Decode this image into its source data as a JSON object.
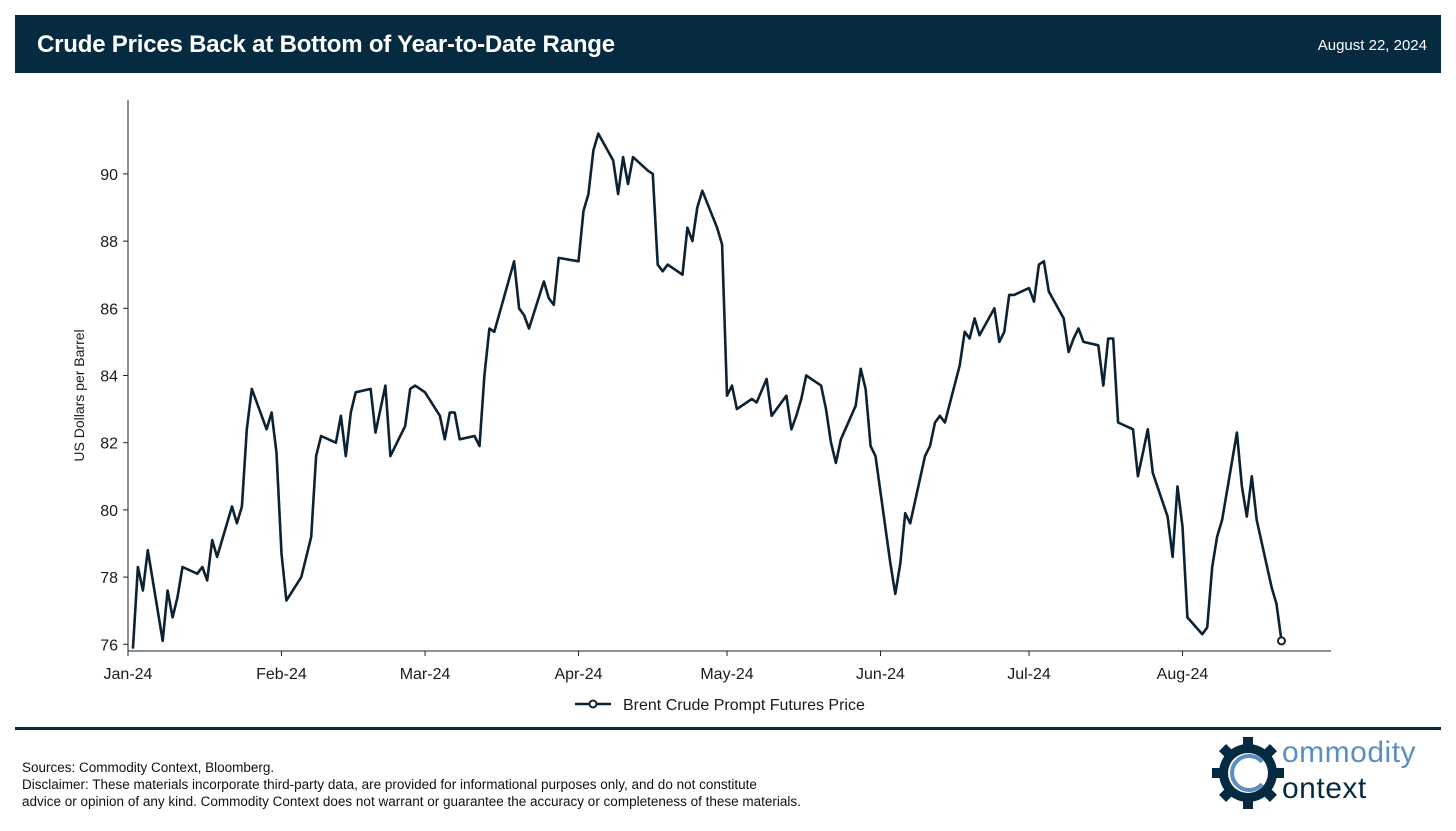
{
  "header": {
    "title": "Crude Prices Back at Bottom of Year-to-Date Range",
    "date": "August 22, 2024"
  },
  "footer": {
    "sources": "Sources: Commodity Context, Bloomberg.",
    "disclaimer_line1": "Disclaimer: These materials incorporate third-party data, are provided for informational purposes only, and do not constitute",
    "disclaimer_line2": "advice or opinion of any kind. Commodity Context does not warrant or guarantee the accuracy or completeness of these materials."
  },
  "logo": {
    "word1": "ommodity",
    "word2": "ontext",
    "icon": "gear-c-logo-icon"
  },
  "colors": {
    "header_bg": "#062a40",
    "series_line": "#0c2233",
    "logo_accent": "#5b8fbf"
  },
  "chart_data": {
    "type": "line",
    "title": "",
    "xlabel": "",
    "ylabel": "US Dollars per Barrel",
    "ylim": [
      75.8,
      92.2
    ],
    "yticks": [
      76,
      78,
      80,
      82,
      84,
      86,
      88,
      90
    ],
    "xlim": [
      "2024-01-01",
      "2024-08-31"
    ],
    "xticks": [
      {
        "date": "2024-01-01",
        "label": "Jan-24"
      },
      {
        "date": "2024-02-01",
        "label": "Feb-24"
      },
      {
        "date": "2024-03-01",
        "label": "Mar-24"
      },
      {
        "date": "2024-04-01",
        "label": "Apr-24"
      },
      {
        "date": "2024-05-01",
        "label": "May-24"
      },
      {
        "date": "2024-06-01",
        "label": "Jun-24"
      },
      {
        "date": "2024-07-01",
        "label": "Jul-24"
      },
      {
        "date": "2024-08-01",
        "label": "Aug-24"
      }
    ],
    "grid": false,
    "legend": "bottom-center",
    "series": [
      {
        "name": "Brent Crude Prompt Futures Price",
        "end_marker": "open-circle",
        "points": [
          [
            "2024-01-02",
            75.9
          ],
          [
            "2024-01-03",
            78.3
          ],
          [
            "2024-01-04",
            77.6
          ],
          [
            "2024-01-05",
            78.8
          ],
          [
            "2024-01-08",
            76.1
          ],
          [
            "2024-01-09",
            77.6
          ],
          [
            "2024-01-10",
            76.8
          ],
          [
            "2024-01-11",
            77.4
          ],
          [
            "2024-01-12",
            78.3
          ],
          [
            "2024-01-15",
            78.1
          ],
          [
            "2024-01-16",
            78.3
          ],
          [
            "2024-01-17",
            77.9
          ],
          [
            "2024-01-18",
            79.1
          ],
          [
            "2024-01-19",
            78.6
          ],
          [
            "2024-01-22",
            80.1
          ],
          [
            "2024-01-23",
            79.6
          ],
          [
            "2024-01-24",
            80.1
          ],
          [
            "2024-01-25",
            82.4
          ],
          [
            "2024-01-26",
            83.6
          ],
          [
            "2024-01-29",
            82.4
          ],
          [
            "2024-01-30",
            82.9
          ],
          [
            "2024-01-31",
            81.7
          ],
          [
            "2024-02-01",
            78.7
          ],
          [
            "2024-02-02",
            77.3
          ],
          [
            "2024-02-05",
            78.0
          ],
          [
            "2024-02-07",
            79.2
          ],
          [
            "2024-02-08",
            81.6
          ],
          [
            "2024-02-09",
            82.2
          ],
          [
            "2024-02-12",
            82.0
          ],
          [
            "2024-02-13",
            82.8
          ],
          [
            "2024-02-14",
            81.6
          ],
          [
            "2024-02-15",
            82.9
          ],
          [
            "2024-02-16",
            83.5
          ],
          [
            "2024-02-19",
            83.6
          ],
          [
            "2024-02-20",
            82.3
          ],
          [
            "2024-02-22",
            83.7
          ],
          [
            "2024-02-23",
            81.6
          ],
          [
            "2024-02-26",
            82.5
          ],
          [
            "2024-02-27",
            83.6
          ],
          [
            "2024-02-28",
            83.7
          ],
          [
            "2024-02-29",
            83.6
          ],
          [
            "2024-03-01",
            83.5
          ],
          [
            "2024-03-04",
            82.8
          ],
          [
            "2024-03-05",
            82.1
          ],
          [
            "2024-03-06",
            82.9
          ],
          [
            "2024-03-07",
            82.9
          ],
          [
            "2024-03-08",
            82.1
          ],
          [
            "2024-03-11",
            82.2
          ],
          [
            "2024-03-12",
            81.9
          ],
          [
            "2024-03-13",
            84.0
          ],
          [
            "2024-03-14",
            85.4
          ],
          [
            "2024-03-15",
            85.3
          ],
          [
            "2024-03-19",
            87.4
          ],
          [
            "2024-03-20",
            86.0
          ],
          [
            "2024-03-21",
            85.8
          ],
          [
            "2024-03-22",
            85.4
          ],
          [
            "2024-03-25",
            86.8
          ],
          [
            "2024-03-26",
            86.3
          ],
          [
            "2024-03-27",
            86.1
          ],
          [
            "2024-03-28",
            87.5
          ],
          [
            "2024-04-01",
            87.4
          ],
          [
            "2024-04-02",
            88.9
          ],
          [
            "2024-04-03",
            89.4
          ],
          [
            "2024-04-04",
            90.7
          ],
          [
            "2024-04-05",
            91.2
          ],
          [
            "2024-04-08",
            90.4
          ],
          [
            "2024-04-09",
            89.4
          ],
          [
            "2024-04-10",
            90.5
          ],
          [
            "2024-04-11",
            89.7
          ],
          [
            "2024-04-12",
            90.5
          ],
          [
            "2024-04-15",
            90.1
          ],
          [
            "2024-04-16",
            90.0
          ],
          [
            "2024-04-17",
            87.3
          ],
          [
            "2024-04-18",
            87.1
          ],
          [
            "2024-04-19",
            87.3
          ],
          [
            "2024-04-22",
            87.0
          ],
          [
            "2024-04-23",
            88.4
          ],
          [
            "2024-04-24",
            88.0
          ],
          [
            "2024-04-25",
            89.0
          ],
          [
            "2024-04-26",
            89.5
          ],
          [
            "2024-04-29",
            88.4
          ],
          [
            "2024-04-30",
            87.9
          ],
          [
            "2024-05-01",
            83.4
          ],
          [
            "2024-05-02",
            83.7
          ],
          [
            "2024-05-03",
            83.0
          ],
          [
            "2024-05-06",
            83.3
          ],
          [
            "2024-05-07",
            83.2
          ],
          [
            "2024-05-09",
            83.9
          ],
          [
            "2024-05-10",
            82.8
          ],
          [
            "2024-05-13",
            83.4
          ],
          [
            "2024-05-14",
            82.4
          ],
          [
            "2024-05-15",
            82.8
          ],
          [
            "2024-05-16",
            83.3
          ],
          [
            "2024-05-17",
            84.0
          ],
          [
            "2024-05-20",
            83.7
          ],
          [
            "2024-05-21",
            83.0
          ],
          [
            "2024-05-22",
            82.0
          ],
          [
            "2024-05-23",
            81.4
          ],
          [
            "2024-05-24",
            82.1
          ],
          [
            "2024-05-27",
            83.1
          ],
          [
            "2024-05-28",
            84.2
          ],
          [
            "2024-05-29",
            83.6
          ],
          [
            "2024-05-30",
            81.9
          ],
          [
            "2024-05-31",
            81.6
          ],
          [
            "2024-06-03",
            78.4
          ],
          [
            "2024-06-04",
            77.5
          ],
          [
            "2024-06-05",
            78.4
          ],
          [
            "2024-06-06",
            79.9
          ],
          [
            "2024-06-07",
            79.6
          ],
          [
            "2024-06-10",
            81.6
          ],
          [
            "2024-06-11",
            81.9
          ],
          [
            "2024-06-12",
            82.6
          ],
          [
            "2024-06-13",
            82.8
          ],
          [
            "2024-06-14",
            82.6
          ],
          [
            "2024-06-17",
            84.3
          ],
          [
            "2024-06-18",
            85.3
          ],
          [
            "2024-06-19",
            85.1
          ],
          [
            "2024-06-20",
            85.7
          ],
          [
            "2024-06-21",
            85.2
          ],
          [
            "2024-06-24",
            86.0
          ],
          [
            "2024-06-25",
            85.0
          ],
          [
            "2024-06-26",
            85.3
          ],
          [
            "2024-06-27",
            86.4
          ],
          [
            "2024-06-28",
            86.4
          ],
          [
            "2024-07-01",
            86.6
          ],
          [
            "2024-07-02",
            86.2
          ],
          [
            "2024-07-03",
            87.3
          ],
          [
            "2024-07-04",
            87.4
          ],
          [
            "2024-07-05",
            86.5
          ],
          [
            "2024-07-08",
            85.7
          ],
          [
            "2024-07-09",
            84.7
          ],
          [
            "2024-07-10",
            85.1
          ],
          [
            "2024-07-11",
            85.4
          ],
          [
            "2024-07-12",
            85.0
          ],
          [
            "2024-07-15",
            84.9
          ],
          [
            "2024-07-16",
            83.7
          ],
          [
            "2024-07-17",
            85.1
          ],
          [
            "2024-07-18",
            85.1
          ],
          [
            "2024-07-19",
            82.6
          ],
          [
            "2024-07-22",
            82.4
          ],
          [
            "2024-07-23",
            81.0
          ],
          [
            "2024-07-24",
            81.7
          ],
          [
            "2024-07-25",
            82.4
          ],
          [
            "2024-07-26",
            81.1
          ],
          [
            "2024-07-29",
            79.8
          ],
          [
            "2024-07-30",
            78.6
          ],
          [
            "2024-07-31",
            80.7
          ],
          [
            "2024-08-01",
            79.5
          ],
          [
            "2024-08-02",
            76.8
          ],
          [
            "2024-08-05",
            76.3
          ],
          [
            "2024-08-06",
            76.5
          ],
          [
            "2024-08-07",
            78.3
          ],
          [
            "2024-08-08",
            79.2
          ],
          [
            "2024-08-09",
            79.7
          ],
          [
            "2024-08-12",
            82.3
          ],
          [
            "2024-08-13",
            80.7
          ],
          [
            "2024-08-14",
            79.8
          ],
          [
            "2024-08-15",
            81.0
          ],
          [
            "2024-08-16",
            79.7
          ],
          [
            "2024-08-19",
            77.7
          ],
          [
            "2024-08-20",
            77.2
          ],
          [
            "2024-08-21",
            76.1
          ]
        ]
      }
    ]
  }
}
